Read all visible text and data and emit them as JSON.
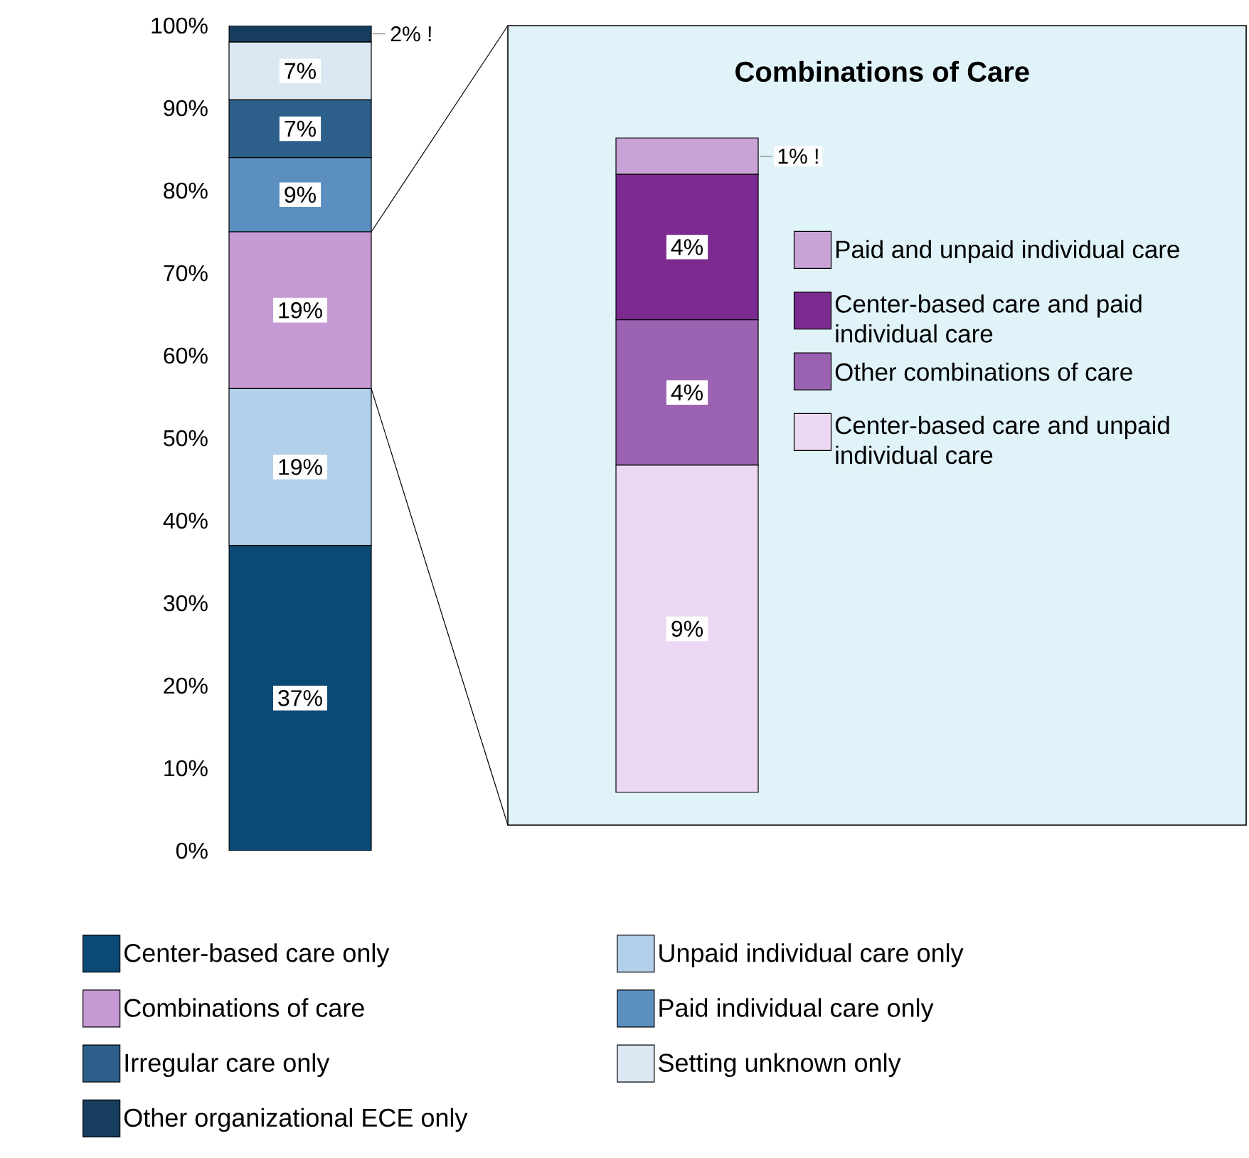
{
  "chart_data": [
    {
      "type": "bar",
      "stacked": true,
      "categories": [
        null
      ],
      "legend": "bottom",
      "ylim": [
        0,
        100
      ],
      "yticks": [
        {
          "value": 0,
          "label": "0%"
        },
        {
          "value": 10,
          "label": "10%"
        },
        {
          "value": 20,
          "label": "20%"
        },
        {
          "value": 30,
          "label": "30%"
        },
        {
          "value": 40,
          "label": "40%"
        },
        {
          "value": 50,
          "label": "50%"
        },
        {
          "value": 60,
          "label": "60%"
        },
        {
          "value": 70,
          "label": "70%"
        },
        {
          "value": 80,
          "label": "80%"
        },
        {
          "value": 90,
          "label": "90%"
        },
        {
          "value": 100,
          "label": "100%"
        }
      ],
      "series": [
        {
          "name": "Center-based care only",
          "color": "#0b4a75",
          "values": [
            37
          ],
          "value_labels": [
            "37%"
          ]
        },
        {
          "name": "Unpaid individual care only",
          "color": "#b3d0ea",
          "values": [
            19
          ],
          "value_labels": [
            "19%"
          ]
        },
        {
          "name": "Combinations of care",
          "color": "#c69ad4",
          "values": [
            19
          ],
          "value_labels": [
            "19%"
          ]
        },
        {
          "name": "Paid individual care only",
          "color": "#5b8fc0",
          "values": [
            9
          ],
          "value_labels": [
            "9%"
          ]
        },
        {
          "name": "Irregular care only",
          "color": "#2c5f8a",
          "values": [
            7
          ],
          "value_labels": [
            "7%"
          ]
        },
        {
          "name": "Setting unknown only",
          "color": "#dbe7f3",
          "values": [
            7
          ],
          "value_labels": [
            "7%"
          ]
        },
        {
          "name": "Other organizational ECE only",
          "color": "#163d5e",
          "values": [
            2
          ],
          "value_labels": [
            "2% !"
          ]
        }
      ]
    },
    {
      "type": "bar",
      "stacked": true,
      "title": "Combinations of Care",
      "categories": [
        null
      ],
      "legend": "right",
      "series": [
        {
          "name": "Center-based care and unpaid individual care",
          "color": "#ecd8f2",
          "values": [
            9
          ],
          "value_labels": [
            "9%"
          ]
        },
        {
          "name": "Other combinations of care",
          "color": "#9c62b2",
          "values": [
            4
          ],
          "value_labels": [
            "4%"
          ]
        },
        {
          "name": "Center-based care and paid individual care",
          "color": "#7b2b8f",
          "values": [
            4
          ],
          "value_labels": [
            "4%"
          ]
        },
        {
          "name": "Paid and unpaid individual care",
          "color": "#c9a3d6",
          "values": [
            1
          ],
          "value_labels": [
            "1% !"
          ]
        }
      ]
    }
  ]
}
